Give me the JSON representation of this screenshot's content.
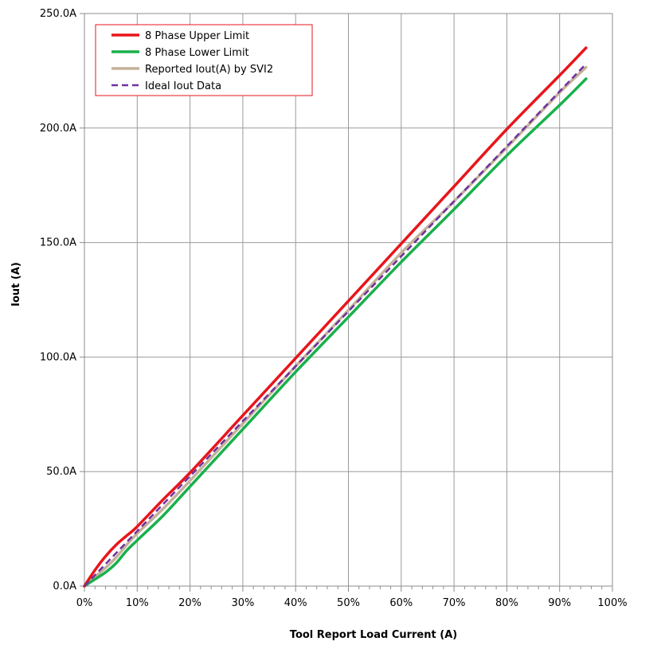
{
  "chart_data": {
    "type": "line",
    "title": "",
    "xlabel": "Tool Report Load Current (A)",
    "ylabel": "Iout (A)",
    "xlim": [
      0,
      100
    ],
    "ylim": [
      0,
      250
    ],
    "x_ticks": [
      "0%",
      "10%",
      "20%",
      "30%",
      "40%",
      "50%",
      "60%",
      "70%",
      "80%",
      "90%",
      "100%"
    ],
    "y_ticks": [
      "0.0A",
      "50.0A",
      "100.0A",
      "150.0A",
      "200.0A",
      "250.0A"
    ],
    "grid": true,
    "legend_position": "top-left",
    "series": [
      {
        "name": "8 Phase Upper Limit",
        "color": "#e8151b",
        "style": "solid",
        "x": [
          0,
          2,
          4,
          6,
          8,
          10,
          15,
          20,
          30,
          40,
          50,
          60,
          70,
          80,
          90,
          95
        ],
        "y": [
          0,
          7,
          13,
          18,
          22,
          26,
          38,
          49.5,
          74.5,
          99.5,
          124.5,
          149.5,
          174.5,
          199.5,
          223,
          235
        ]
      },
      {
        "name": "8 Phase Lower Limit",
        "color": "#19b04b",
        "style": "solid",
        "x": [
          0,
          2,
          4,
          6,
          8,
          10,
          15,
          20,
          30,
          40,
          50,
          60,
          70,
          80,
          90,
          95
        ],
        "y": [
          0,
          3,
          6,
          10,
          15.5,
          20,
          31,
          43.5,
          68.5,
          93.5,
          117.5,
          141.5,
          164.5,
          188,
          210,
          221.5
        ]
      },
      {
        "name": "Reported Iout(A) by SVI2",
        "color": "#c4b29a",
        "style": "solid",
        "x": [
          0,
          2,
          4,
          6,
          8,
          10,
          15,
          20,
          30,
          40,
          50,
          60,
          70,
          80,
          90,
          95
        ],
        "y": [
          0,
          4,
          8,
          12.5,
          18,
          23,
          34,
          46,
          71,
          96,
          120.5,
          145.5,
          168,
          191.5,
          215.5,
          226.5
        ]
      },
      {
        "name": "Ideal Iout Data",
        "color": "#7030a0",
        "style": "dashed",
        "x": [
          0,
          10,
          20,
          30,
          40,
          50,
          60,
          70,
          80,
          90,
          95
        ],
        "y": [
          0,
          24,
          48,
          72,
          96,
          120,
          144,
          168,
          192,
          216,
          228
        ]
      }
    ]
  }
}
